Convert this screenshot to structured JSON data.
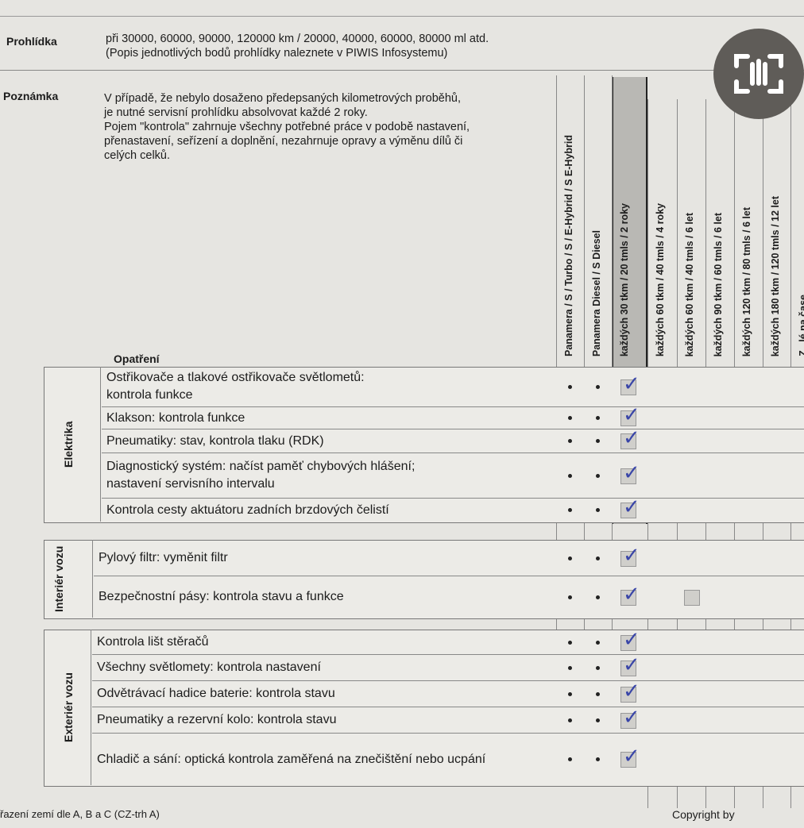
{
  "prohlidka": {
    "label": "Prohlídka",
    "lines": [
      "při 30000, 60000, 90000, 120000 km / 20000, 40000, 60000, 80000 ml atd.",
      "(Popis jednotlivých bodů prohlídky naleznete v PIWIS Infosystemu)"
    ]
  },
  "poznamka": {
    "label": "Poznámka",
    "lines": [
      "V případě, že nebylo dosaženo předepsaných kilometrových proběhů,",
      "je nutné servisní prohlídku absolvovat každé 2 roky.",
      "Pojem \"kontrola\" zahrnuje všechny potřebné práce v podobě nastavení,",
      "přenastavení, seřízení a doplnění, nezahrnuje opravy a výměnu dílů či",
      "celých celků."
    ]
  },
  "opatreni_label": "Opatření",
  "columns": [
    "Panamera / S / Turbo / S / E-Hybrid / S E-Hybrid",
    "Panamera Diesel / S Diesel",
    "každých 30 tkm / 20 tmls / 2 roky",
    "každých 60 tkm / 40 tmls / 4 roky",
    "každých 60 tkm / 40 tmls / 6 let",
    "každých 90 tkm / 60 tmls / 6 let",
    "každých 120 tkm / 80 tmls / 6 let",
    "každých 180 tkm / 120 tmls / 12 let",
    "Z...lé na čase"
  ],
  "highlighted_column": "každých 30 tkm / 20 tmls / 2 roky",
  "groups": [
    {
      "name": "Elektrika",
      "rows": [
        {
          "text": [
            "Ostřikovače a tlakové ostřikovače světlometů:",
            "kontrola funkce"
          ],
          "checked": true
        },
        {
          "text": [
            "Klakson: kontrola funkce"
          ],
          "checked": true
        },
        {
          "text": [
            "Pneumatiky: stav, kontrola tlaku (RDK)"
          ],
          "checked": true
        },
        {
          "text": [
            "Diagnostický systém: načíst paměť chybových hlášení;",
            "nastavení servisního intervalu"
          ],
          "checked": true
        },
        {
          "text": [
            "Kontrola cesty aktuátoru zadních brzdových čelistí"
          ],
          "checked": true
        }
      ]
    },
    {
      "name": "Interiér vozu",
      "rows": [
        {
          "text": [
            "Pylový filtr: vyměnit filtr"
          ],
          "checked": true
        },
        {
          "text": [
            "Bezpečnostní pásy: kontrola stavu a funkce"
          ],
          "checked": true,
          "extra_box_column": "každých 60 tkm / 40 tmls / 6 let"
        }
      ]
    },
    {
      "name": "Exteriér vozu",
      "rows": [
        {
          "text": [
            "Kontrola lišt stěračů"
          ],
          "checked": true
        },
        {
          "text": [
            "Všechny světlomety: kontrola nastavení"
          ],
          "checked": true
        },
        {
          "text": [
            "Odvětrávací hadice baterie: kontrola stavu"
          ],
          "checked": true
        },
        {
          "text": [
            "Pneumatiky a rezervní kolo: kontrola stavu"
          ],
          "checked": true
        },
        {
          "text": [
            "Chladič a sání: optická kontrola zaměřená na znečištění nebo ucpání"
          ],
          "checked": true
        }
      ]
    }
  ],
  "footer": {
    "left": "řazení zemí dle A, B a C (CZ-trh A)",
    "right": "Copyright by"
  },
  "overlay": {
    "icon": "screenshot-scan-icon"
  },
  "colors": {
    "highlight": "#b9b8b4",
    "ink": "#3a46a8",
    "overlay": "#5f5c58"
  }
}
